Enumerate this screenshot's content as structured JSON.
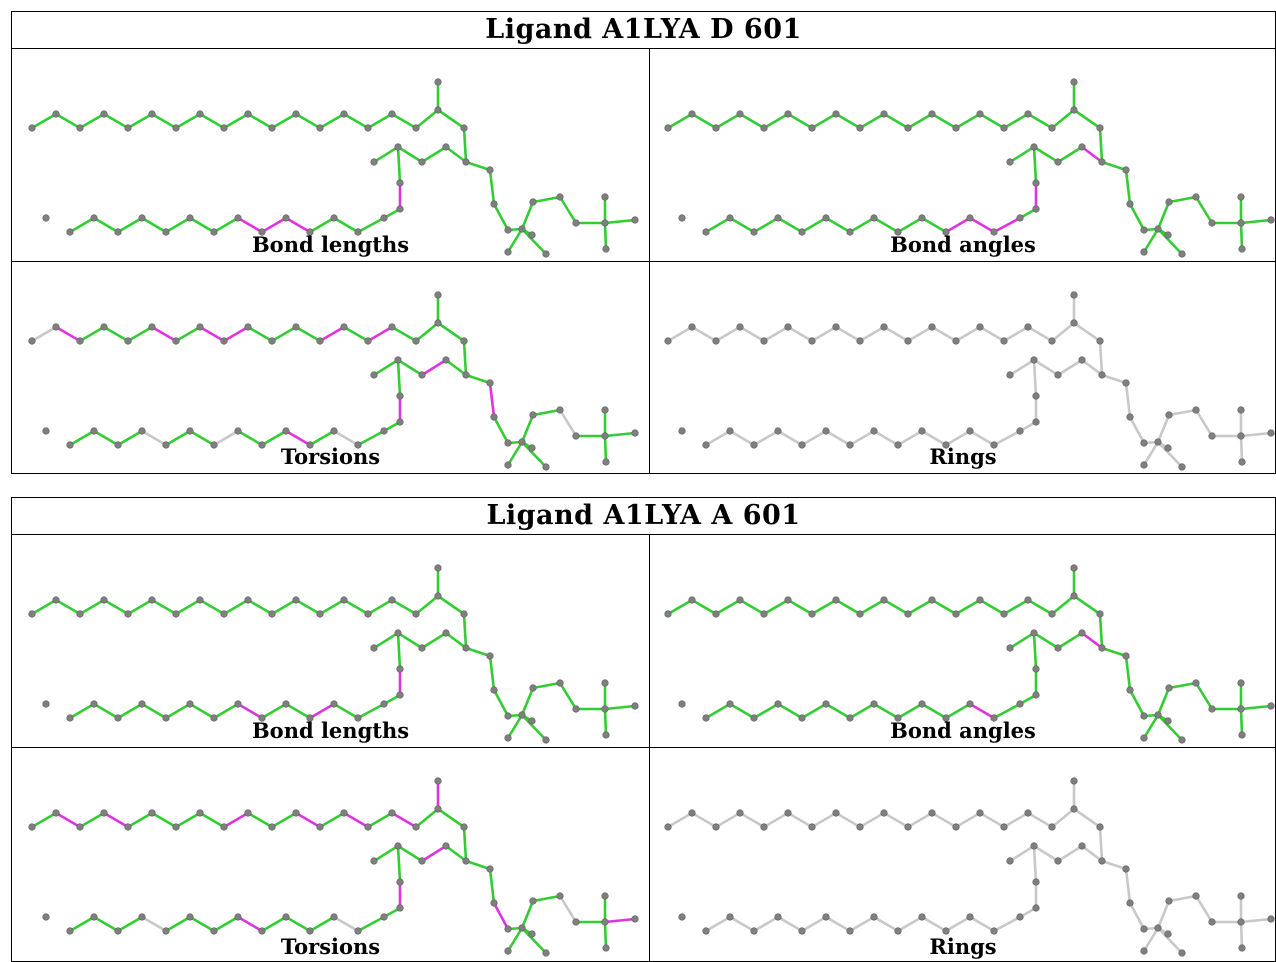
{
  "colors": {
    "ok": "#33cc33",
    "outlier": "#e033e0",
    "none": "#c8c8c8",
    "atom": "#7f7f7f"
  },
  "ligands": [
    {
      "title": "Ligand A1LYA D 601",
      "panels": [
        {
          "label": "Bond lengths",
          "default": "ok",
          "none": [],
          "outliers": [
            [
              25,
              26
            ],
            [
              33,
              34
            ],
            [
              34,
              35
            ],
            [
              35,
              36
            ]
          ]
        },
        {
          "label": "Bond angles",
          "default": "ok",
          "none": [],
          "outliers": [
            [
              23,
              24
            ],
            [
              24,
              25
            ],
            [
              31,
              32
            ],
            [
              32,
              33
            ],
            [
              30,
              31
            ],
            [
              25,
              26
            ]
          ]
        },
        {
          "label": "Torsions",
          "default": "ok",
          "none": [
            [
              0,
              1
            ],
            [
              24,
              26
            ],
            [
              31,
              32
            ],
            [
              36,
              37
            ],
            [
              36,
              38
            ],
            [
              39,
              40
            ],
            [
              39,
              41
            ],
            [
              39,
              42
            ],
            [
              47,
              48
            ]
          ],
          "outliers": [
            [
              1,
              2
            ],
            [
              5,
              6
            ],
            [
              7,
              8
            ],
            [
              8,
              9
            ],
            [
              12,
              13
            ],
            [
              14,
              15
            ],
            [
              22,
              23
            ],
            [
              24,
              25
            ],
            [
              25,
              26
            ],
            [
              27,
              28
            ],
            [
              29,
              30
            ],
            [
              33,
              34
            ],
            [
              37,
              39
            ],
            [
              43,
              44
            ],
            [
              50,
              51
            ],
            [
              51,
              52
            ],
            [
              54,
              55
            ],
            [
              55,
              56
            ],
            [
              57,
              58
            ],
            [
              58,
              59
            ]
          ]
        },
        {
          "label": "Rings",
          "default": "none",
          "none": [],
          "outliers": []
        }
      ]
    },
    {
      "title": "Ligand A1LYA A 601",
      "panels": [
        {
          "label": "Bond lengths",
          "default": "ok",
          "none": [],
          "outliers": [
            [
              25,
              26
            ],
            [
              32,
              33
            ],
            [
              35,
              36
            ]
          ]
        },
        {
          "label": "Bond angles",
          "default": "ok",
          "none": [],
          "outliers": [
            [
              23,
              24
            ],
            [
              24,
              25
            ],
            [
              31,
              32
            ]
          ]
        },
        {
          "label": "Torsions",
          "default": "ok",
          "none": [
            [
              24,
              26
            ],
            [
              31,
              32
            ],
            [
              36,
              38
            ],
            [
              39,
              40
            ],
            [
              39,
              41
            ],
            [
              39,
              42
            ],
            [
              47,
              48
            ]
          ],
          "outliers": [
            [
              1,
              2
            ],
            [
              3,
              4
            ],
            [
              8,
              9
            ],
            [
              11,
              12
            ],
            [
              13,
              14
            ],
            [
              15,
              16
            ],
            [
              17,
              18
            ],
            [
              22,
              23
            ],
            [
              24,
              25
            ],
            [
              25,
              26
            ],
            [
              28,
              29
            ],
            [
              35,
              36
            ],
            [
              37,
              39
            ],
            [
              49,
              50
            ],
            [
              50,
              51
            ],
            [
              52,
              53
            ],
            [
              54,
              55
            ],
            [
              55,
              56
            ]
          ]
        },
        {
          "label": "Rings",
          "default": "none",
          "none": [],
          "outliers": []
        }
      ]
    }
  ]
}
